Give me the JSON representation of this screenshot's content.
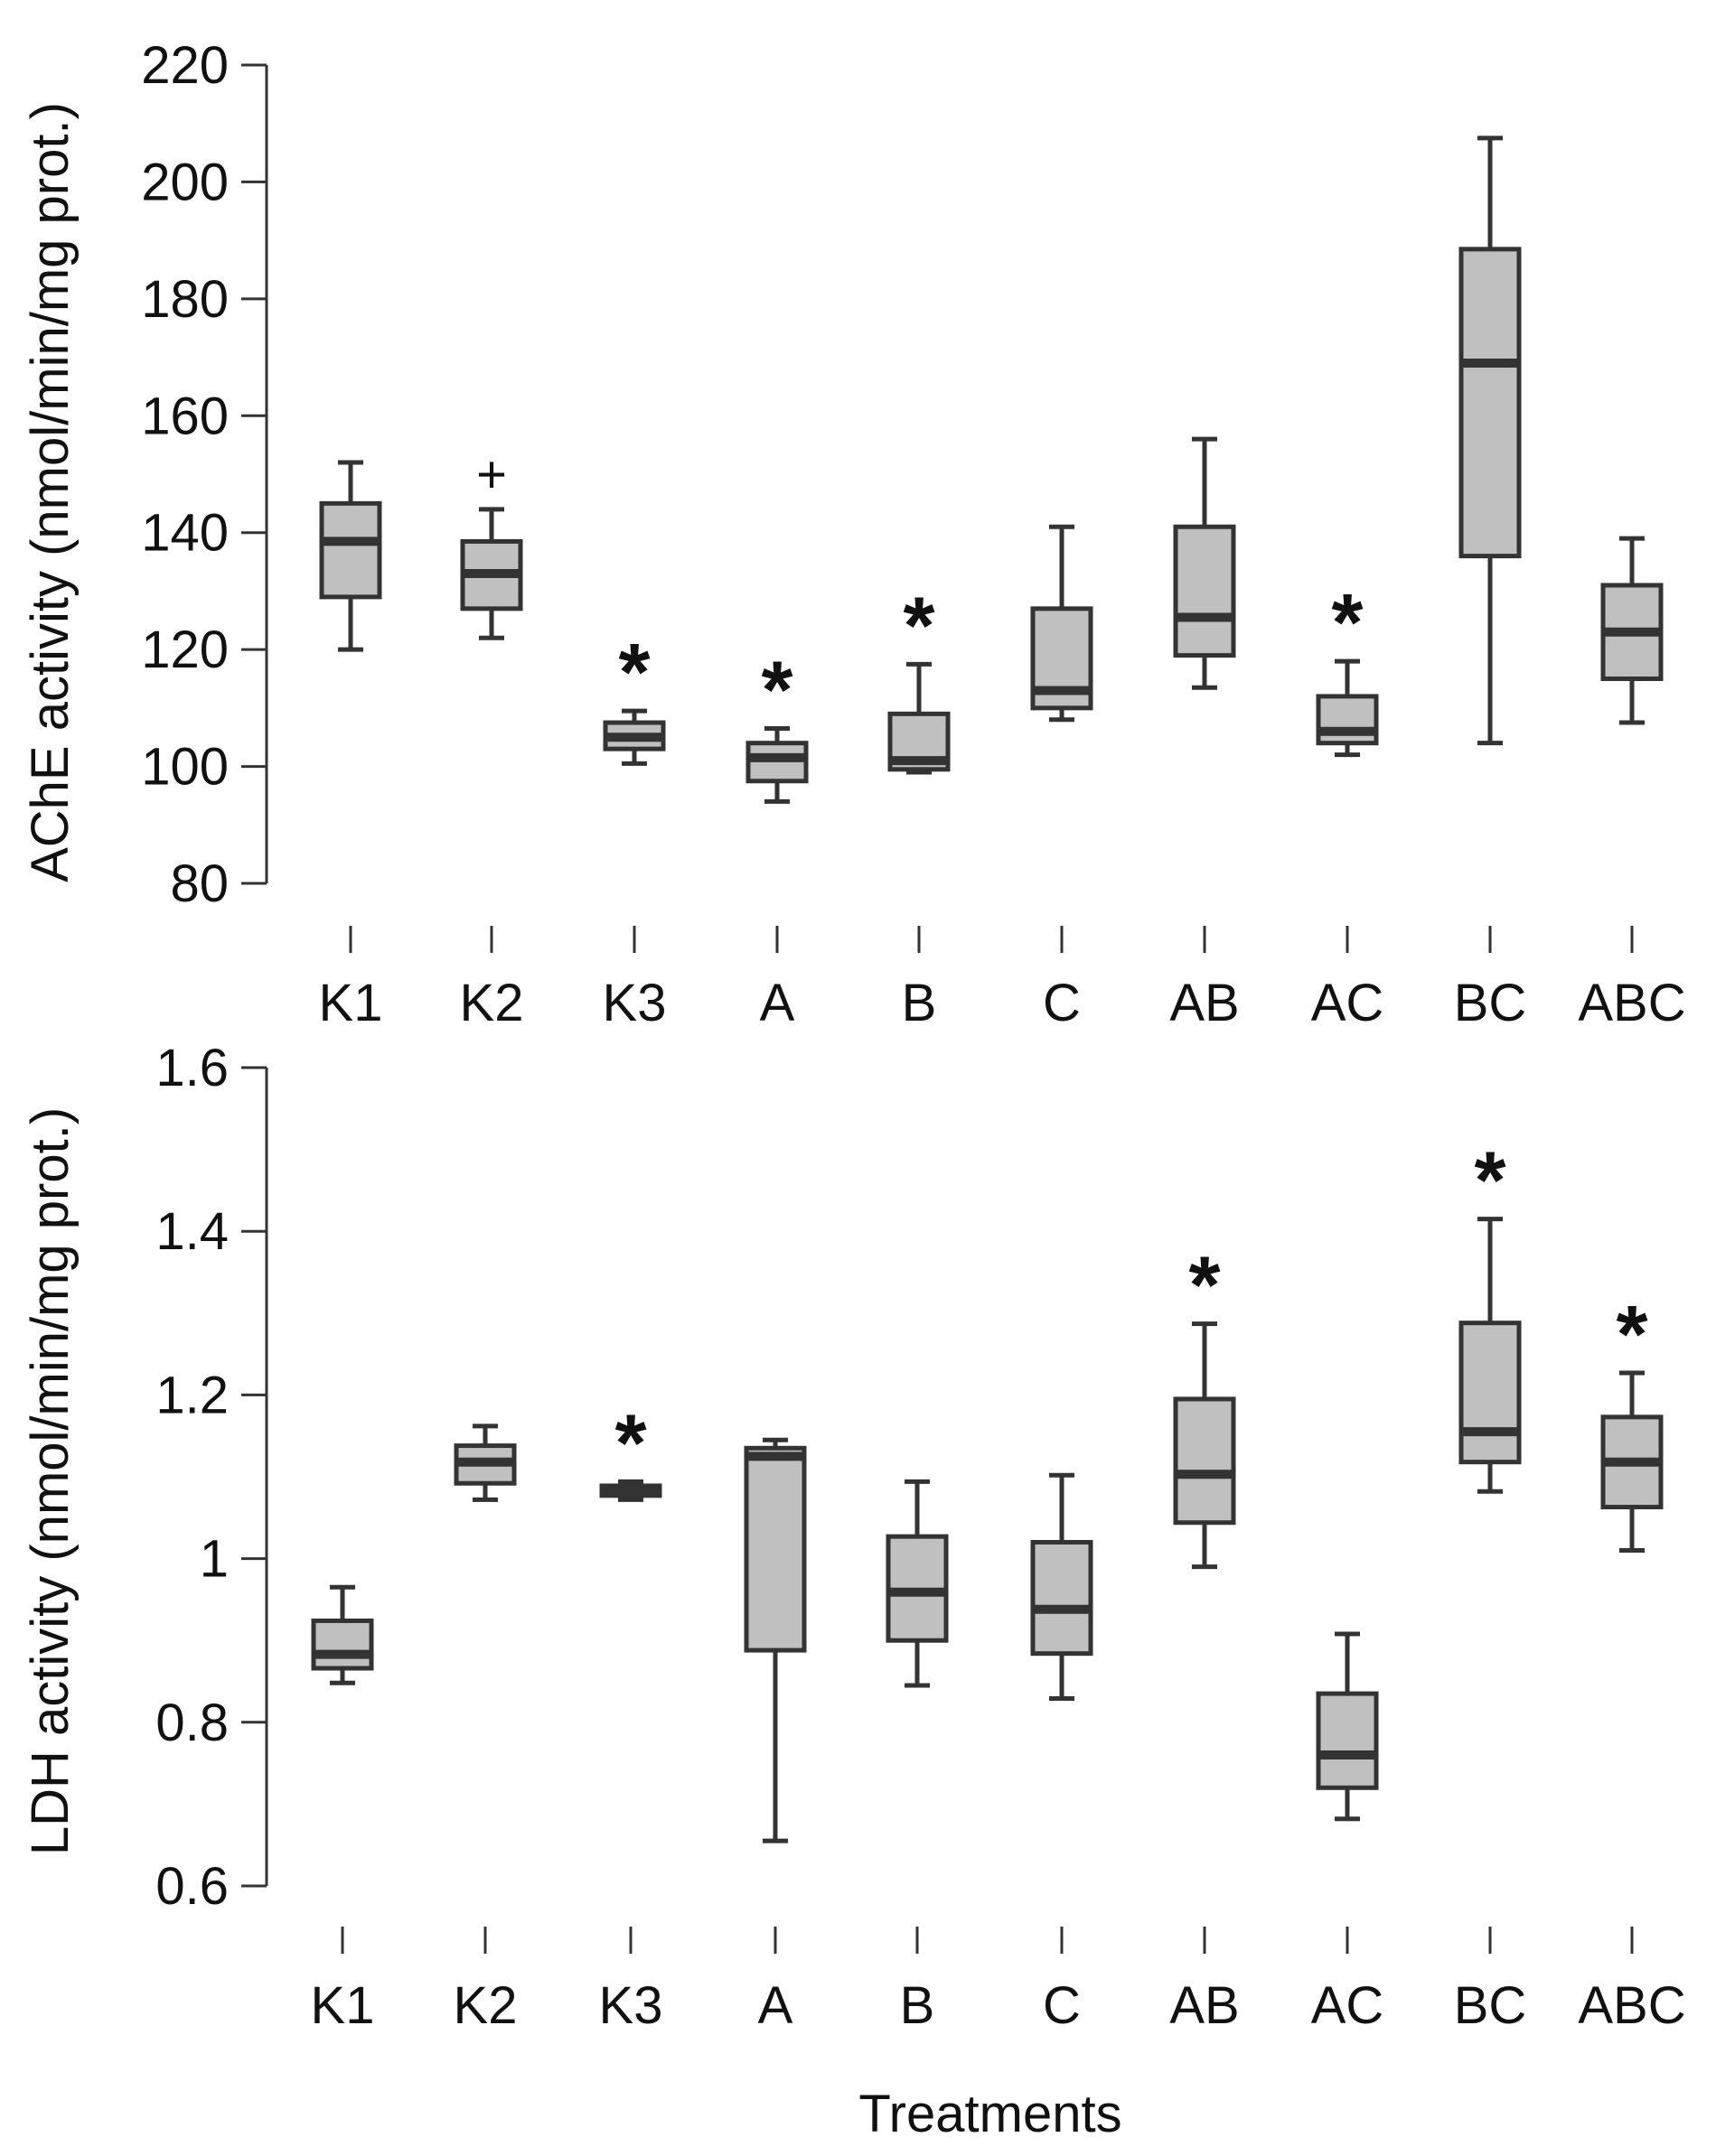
{
  "figure": {
    "xlabel": "Treatments",
    "colors": {
      "box_fill": "#c0c0c0",
      "stroke": "#333333",
      "median": "#333333"
    }
  },
  "chart_data": [
    {
      "type": "box",
      "ylabel": "AChE activity (nmol/min/mg prot.)",
      "ylim": [
        80,
        220
      ],
      "yticks": [
        80,
        100,
        120,
        140,
        160,
        180,
        200,
        220
      ],
      "ytick_labels": [
        "80",
        "100",
        "120",
        "140",
        "160",
        "180",
        "200",
        "220"
      ],
      "categories": [
        "K1",
        "K2",
        "K3",
        "A",
        "B",
        "C",
        "AB",
        "AC",
        "BC",
        "ABC"
      ],
      "boxes": [
        {
          "min": 120,
          "q1": 129,
          "median": 138.5,
          "q3": 145,
          "max": 152,
          "marker": ""
        },
        {
          "min": 122,
          "q1": 127,
          "median": 133,
          "q3": 138.5,
          "max": 144,
          "marker": "",
          "outlier": 150,
          "outlier_symbol": "+"
        },
        {
          "min": 100.5,
          "q1": 103,
          "median": 105,
          "q3": 107.5,
          "max": 109.5,
          "marker": "*"
        },
        {
          "min": 94,
          "q1": 97.5,
          "median": 101.5,
          "q3": 104,
          "max": 106.5,
          "marker": "*"
        },
        {
          "min": 99,
          "q1": 99.5,
          "median": 101,
          "q3": 109,
          "max": 117.5,
          "marker": "*"
        },
        {
          "min": 108,
          "q1": 110,
          "median": 113,
          "q3": 127,
          "max": 141,
          "marker": ""
        },
        {
          "min": 113.5,
          "q1": 119,
          "median": 125.5,
          "q3": 141,
          "max": 156,
          "marker": ""
        },
        {
          "min": 102,
          "q1": 104,
          "median": 106,
          "q3": 112,
          "max": 118,
          "marker": "*"
        },
        {
          "min": 104,
          "q1": 136,
          "median": 169,
          "q3": 188.5,
          "max": 207.5,
          "marker": ""
        },
        {
          "min": 107.5,
          "q1": 115,
          "median": 123,
          "q3": 131,
          "max": 139,
          "marker": ""
        }
      ]
    },
    {
      "type": "box",
      "ylabel": "LDH activity (nmol/min/mg prot.)",
      "ylim": [
        0.6,
        1.6
      ],
      "yticks": [
        0.6,
        0.8,
        1.0,
        1.2,
        1.4,
        1.6
      ],
      "ytick_labels": [
        "0.6",
        "0.8",
        "1",
        "1.2",
        "1.4",
        "1.6"
      ],
      "categories": [
        "K1",
        "K2",
        "K3",
        "A",
        "B",
        "C",
        "AB",
        "AC",
        "BC",
        "ABC"
      ],
      "boxes": [
        {
          "min": 0.848,
          "q1": 0.866,
          "median": 0.883,
          "q3": 0.924,
          "max": 0.965,
          "marker": ""
        },
        {
          "min": 1.072,
          "q1": 1.092,
          "median": 1.118,
          "q3": 1.138,
          "max": 1.162,
          "marker": ""
        },
        {
          "min": 1.072,
          "q1": 1.077,
          "median": 1.083,
          "q3": 1.089,
          "max": 1.094,
          "marker": "*"
        },
        {
          "min": 0.655,
          "q1": 0.888,
          "median": 1.125,
          "q3": 1.135,
          "max": 1.145,
          "marker": ""
        },
        {
          "min": 0.845,
          "q1": 0.9,
          "median": 0.959,
          "q3": 1.027,
          "max": 1.094,
          "marker": ""
        },
        {
          "min": 0.829,
          "q1": 0.884,
          "median": 0.938,
          "q3": 1.02,
          "max": 1.102,
          "marker": ""
        },
        {
          "min": 0.99,
          "q1": 1.044,
          "median": 1.103,
          "q3": 1.195,
          "max": 1.287,
          "marker": "*"
        },
        {
          "min": 0.682,
          "q1": 0.72,
          "median": 0.76,
          "q3": 0.835,
          "max": 0.908,
          "marker": ""
        },
        {
          "min": 1.082,
          "q1": 1.118,
          "median": 1.155,
          "q3": 1.288,
          "max": 1.415,
          "marker": "*"
        },
        {
          "min": 1.01,
          "q1": 1.063,
          "median": 1.118,
          "q3": 1.173,
          "max": 1.227,
          "marker": "*"
        }
      ]
    }
  ]
}
